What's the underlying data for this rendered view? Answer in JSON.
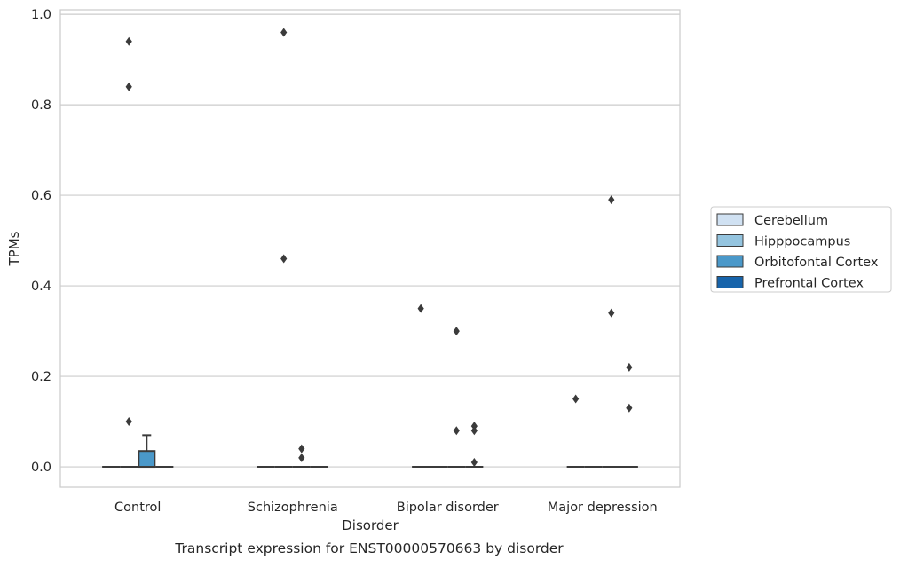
{
  "chart_data": {
    "type": "boxplot",
    "xlabel": "Disorder",
    "ylabel": "TPMs",
    "caption": "Transcript expression for ENST00000570663 by disorder",
    "ylim": [
      -0.045,
      1.01
    ],
    "yticks": [
      0.0,
      0.2,
      0.4,
      0.6,
      0.8,
      1.0
    ],
    "ytick_labels": [
      "0.0",
      "0.2",
      "0.4",
      "0.6",
      "0.8",
      "1.0"
    ],
    "grid": "horizontal",
    "legend_position": "right",
    "categories": [
      "Control",
      "Schizophrenia",
      "Bipolar disorder",
      "Major depression"
    ],
    "series": [
      {
        "name": "Cerebellum",
        "color": "#d0e1f2",
        "boxes": [
          {
            "category": "Control",
            "q1": 0,
            "median": 0,
            "q3": 0,
            "whisker_low": 0,
            "whisker_high": 0,
            "outliers": []
          },
          {
            "category": "Schizophrenia",
            "q1": 0,
            "median": 0,
            "q3": 0,
            "whisker_low": 0,
            "whisker_high": 0,
            "outliers": []
          },
          {
            "category": "Bipolar disorder",
            "q1": 0,
            "median": 0,
            "q3": 0,
            "whisker_low": 0,
            "whisker_high": 0,
            "outliers": [
              0.35
            ]
          },
          {
            "category": "Major depression",
            "q1": 0,
            "median": 0,
            "q3": 0,
            "whisker_low": 0,
            "whisker_high": 0,
            "outliers": [
              0.15
            ]
          }
        ]
      },
      {
        "name": "Hipppocampus",
        "color": "#94c4df",
        "boxes": [
          {
            "category": "Control",
            "q1": 0,
            "median": 0,
            "q3": 0,
            "whisker_low": 0,
            "whisker_high": 0,
            "outliers": [
              0.94,
              0.84,
              0.1
            ]
          },
          {
            "category": "Schizophrenia",
            "q1": 0,
            "median": 0,
            "q3": 0,
            "whisker_low": 0,
            "whisker_high": 0,
            "outliers": [
              0.96,
              0.46
            ]
          },
          {
            "category": "Bipolar disorder",
            "q1": 0,
            "median": 0,
            "q3": 0,
            "whisker_low": 0,
            "whisker_high": 0,
            "outliers": []
          },
          {
            "category": "Major depression",
            "q1": 0,
            "median": 0,
            "q3": 0,
            "whisker_low": 0,
            "whisker_high": 0,
            "outliers": []
          }
        ]
      },
      {
        "name": "Orbitofontal Cortex",
        "color": "#4a98c9",
        "boxes": [
          {
            "category": "Control",
            "q1": 0,
            "median": 0,
            "q3": 0.035,
            "whisker_low": 0,
            "whisker_high": 0.07,
            "outliers": []
          },
          {
            "category": "Schizophrenia",
            "q1": 0,
            "median": 0,
            "q3": 0,
            "whisker_low": 0,
            "whisker_high": 0,
            "outliers": [
              0.04,
              0.02
            ]
          },
          {
            "category": "Bipolar disorder",
            "q1": 0,
            "median": 0,
            "q3": 0,
            "whisker_low": 0,
            "whisker_high": 0,
            "outliers": [
              0.3,
              0.08
            ]
          },
          {
            "category": "Major depression",
            "q1": 0,
            "median": 0,
            "q3": 0,
            "whisker_low": 0,
            "whisker_high": 0,
            "outliers": [
              0.59,
              0.34
            ]
          }
        ]
      },
      {
        "name": "Prefrontal Cortex",
        "color": "#1764ab",
        "boxes": [
          {
            "category": "Control",
            "q1": 0,
            "median": 0,
            "q3": 0,
            "whisker_low": 0,
            "whisker_high": 0,
            "outliers": []
          },
          {
            "category": "Schizophrenia",
            "q1": 0,
            "median": 0,
            "q3": 0,
            "whisker_low": 0,
            "whisker_high": 0,
            "outliers": []
          },
          {
            "category": "Bipolar disorder",
            "q1": 0,
            "median": 0,
            "q3": 0,
            "whisker_low": 0,
            "whisker_high": 0,
            "outliers": [
              0.09,
              0.08,
              0.01
            ]
          },
          {
            "category": "Major depression",
            "q1": 0,
            "median": 0,
            "q3": 0,
            "whisker_low": 0,
            "whisker_high": 0,
            "outliers": [
              0.22,
              0.13
            ]
          }
        ]
      }
    ]
  }
}
